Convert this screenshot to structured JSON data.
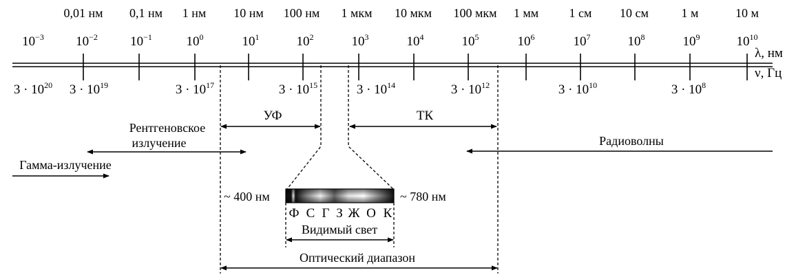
{
  "top_labels": [
    "0,01 нм",
    "0,1 нм",
    "1 нм",
    "10 нм",
    "100 нм",
    "1 мкм",
    "10 мкм",
    "100 мкм",
    "1 мм",
    "1 см",
    "10 см",
    "1 м",
    "10 м"
  ],
  "lambda_ticks": [
    {
      "base": "10",
      "exp": "−3"
    },
    {
      "base": "10",
      "exp": "−2"
    },
    {
      "base": "10",
      "exp": "−1"
    },
    {
      "base": "10",
      "exp": "0"
    },
    {
      "base": "10",
      "exp": "1"
    },
    {
      "base": "10",
      "exp": "2"
    },
    {
      "base": "10",
      "exp": "3"
    },
    {
      "base": "10",
      "exp": "4"
    },
    {
      "base": "10",
      "exp": "5"
    },
    {
      "base": "10",
      "exp": "6"
    },
    {
      "base": "10",
      "exp": "7"
    },
    {
      "base": "10",
      "exp": "8"
    },
    {
      "base": "10",
      "exp": "9"
    },
    {
      "base": "10",
      "exp": "10"
    }
  ],
  "freq_ticks": [
    {
      "base": "3 · 10",
      "exp": "20"
    },
    {
      "base": "3 · 10",
      "exp": "19"
    },
    {
      "base": "3 · 10",
      "exp": "17"
    },
    {
      "base": "3 · 10",
      "exp": "15"
    },
    {
      "base": "3 · 10",
      "exp": "14"
    },
    {
      "base": "3 · 10",
      "exp": "12"
    },
    {
      "base": "3 · 10",
      "exp": "10"
    },
    {
      "base": "3 · 10",
      "exp": "8"
    }
  ],
  "axis_labels": {
    "lambda": "λ, нм",
    "nu": "ν, Гц"
  },
  "regions": {
    "uv": "УФ",
    "ir": "ТК",
    "xray_line1": "Рентгеновское",
    "xray_line2": "излучение",
    "gamma": "Гамма-излучение",
    "radio": "Радиоволны",
    "visible": "Видимый свет",
    "optical": "Оптический диапазон",
    "visible_left": "~ 400 нм",
    "visible_right": "~ 780 нм"
  },
  "colors": [
    "Ф",
    "С",
    "Г",
    "З",
    "Ж",
    "О",
    "К"
  ]
}
